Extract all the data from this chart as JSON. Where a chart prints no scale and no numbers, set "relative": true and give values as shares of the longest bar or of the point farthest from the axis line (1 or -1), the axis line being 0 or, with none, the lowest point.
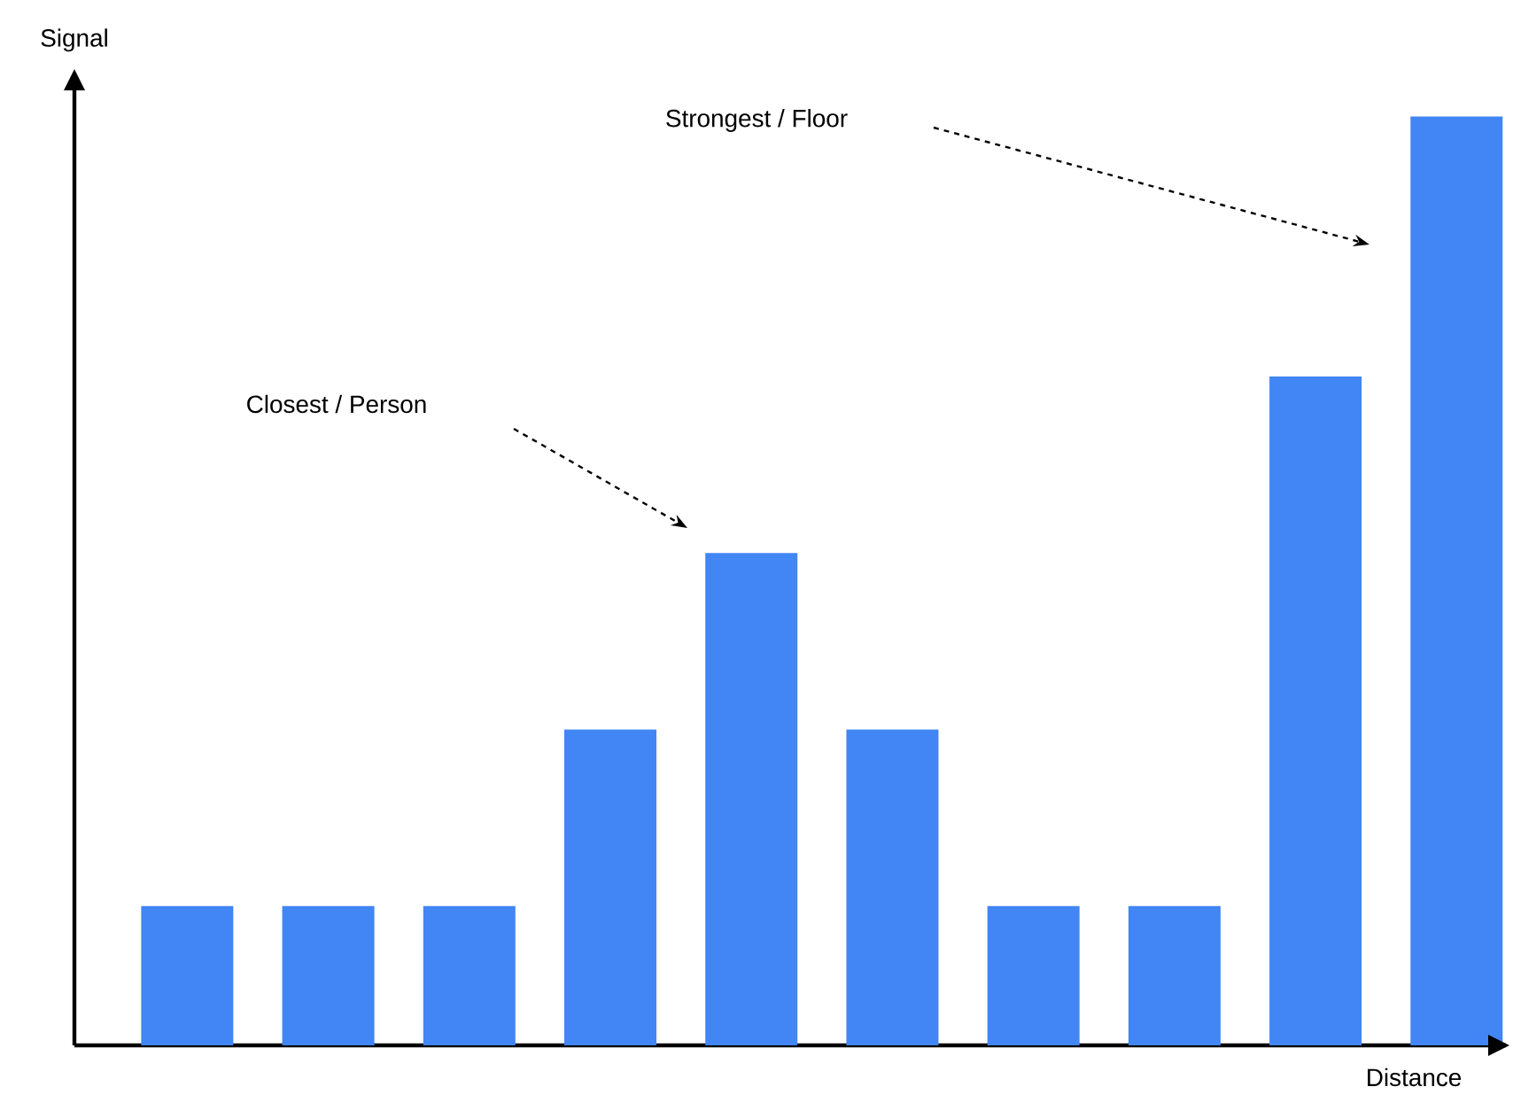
{
  "chart_data": {
    "type": "bar",
    "xlabel": "Distance",
    "ylabel": "Signal",
    "categories": [
      null,
      null,
      null,
      null,
      null,
      null,
      null,
      null,
      null,
      null
    ],
    "values": [
      0.15,
      0.15,
      0.15,
      0.34,
      0.53,
      0.34,
      0.15,
      0.15,
      0.72,
      1
    ],
    "color": "#4285f4",
    "relative": true,
    "tick_labels": false,
    "annotations": [
      "Closest / Person",
      "Strongest / Floor"
    ]
  }
}
